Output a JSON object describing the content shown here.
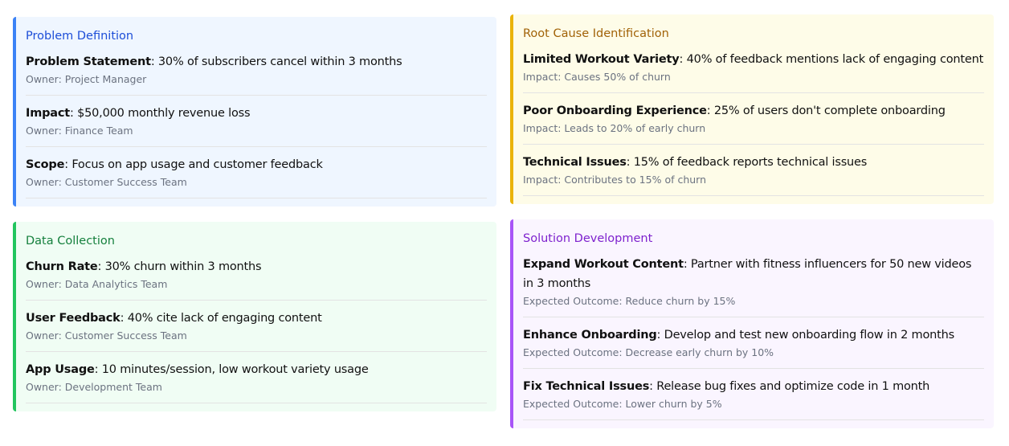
{
  "cards": [
    {
      "title": "Problem Definition",
      "bg": "#eff6ff",
      "border": "#3b82f6",
      "color": "#1d4ed8",
      "items": [
        {
          "label": "Problem Statement",
          "text": ": 30% of subscribers cancel within 3 months",
          "sub": "Owner: Project Manager"
        },
        {
          "label": "Impact",
          "text": ": $50,000 monthly revenue loss",
          "sub": "Owner: Finance Team"
        },
        {
          "label": "Scope",
          "text": ": Focus on app usage and customer feedback",
          "sub": "Owner: Customer Success Team"
        }
      ]
    },
    {
      "title": "Root Cause Identification",
      "bg": "#fefce8",
      "border": "#eab308",
      "color": "#a16207",
      "items": [
        {
          "label": "Limited Workout Variety",
          "text": ": 40% of feedback mentions lack of engaging content",
          "sub": "Impact: Causes 50% of churn"
        },
        {
          "label": "Poor Onboarding Experience",
          "text": ": 25% of users don't complete onboarding",
          "sub": "Impact: Leads to 20% of early churn"
        },
        {
          "label": "Technical Issues",
          "text": ": 15% of feedback reports technical issues",
          "sub": "Impact: Contributes to 15% of churn"
        }
      ]
    },
    {
      "title": "Data Collection",
      "bg": "#f0fdf4",
      "border": "#22c55e",
      "color": "#15803d",
      "items": [
        {
          "label": "Churn Rate",
          "text": ": 30% churn within 3 months",
          "sub": "Owner: Data Analytics Team"
        },
        {
          "label": "User Feedback",
          "text": ": 40% cite lack of engaging content",
          "sub": "Owner: Customer Success Team"
        },
        {
          "label": "App Usage",
          "text": ": 10 minutes/session, low workout variety usage",
          "sub": "Owner: Development Team"
        }
      ]
    },
    {
      "title": "Solution Development",
      "bg": "#faf5ff",
      "border": "#a855f7",
      "color": "#7e22ce",
      "items": [
        {
          "label": "Expand Workout Content",
          "text": ": Partner with fitness influencers for 50 new videos in 3 months",
          "sub": "Expected Outcome: Reduce churn by 15%"
        },
        {
          "label": "Enhance Onboarding",
          "text": ": Develop and test new onboarding flow in 2 months",
          "sub": "Expected Outcome: Decrease early churn by 10%"
        },
        {
          "label": "Fix Technical Issues",
          "text": ": Release bug fixes and optimize code in 1 month",
          "sub": "Expected Outcome: Lower churn by 5%"
        }
      ]
    }
  ]
}
